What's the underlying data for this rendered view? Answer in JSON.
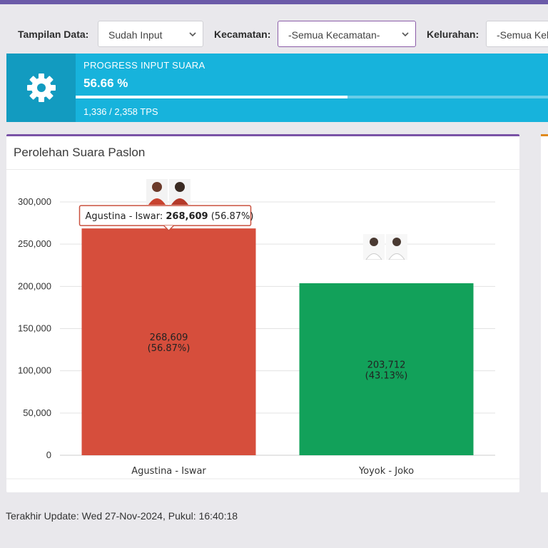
{
  "filters": {
    "tampilan": {
      "label": "Tampilan Data:",
      "value": "Sudah Input"
    },
    "kecamatan": {
      "label": "Kecamatan:",
      "value": "-Semua Kecamatan-"
    },
    "kelurahan": {
      "label": "Kelurahan:",
      "value": "-Semua Kel"
    }
  },
  "progress": {
    "title": "PROGRESS INPUT SUARA",
    "percent_text": "56.66 %",
    "fraction": 0.5666,
    "tps_text": "1,336 / 2,358 TPS",
    "icon": "gear-icon"
  },
  "card": {
    "title": "Perolehan Suara Paslon"
  },
  "tooltip": {
    "series": "Agustina - Iswar:",
    "value": "268,609",
    "pct": "(56.87%)"
  },
  "footer": {
    "text": "Terakhir Update: Wed 27-Nov-2024, Pukul: 16:40:18"
  },
  "chart_data": {
    "type": "bar",
    "categories": [
      "Agustina - Iswar",
      "Yoyok - Joko"
    ],
    "values": [
      268609,
      203712
    ],
    "value_labels": [
      "268,609",
      "203,712"
    ],
    "percent_labels": [
      "(56.87%)",
      "(43.13%)"
    ],
    "colors": [
      "#d64e3c",
      "#12a15a"
    ],
    "ylim": [
      0,
      300000
    ],
    "yticks": [
      0,
      50000,
      100000,
      150000,
      200000,
      250000,
      300000
    ],
    "ytick_labels": [
      "0",
      "50,000",
      "100,000",
      "150,000",
      "200,000",
      "250,000",
      "300,000"
    ],
    "grid": true
  }
}
